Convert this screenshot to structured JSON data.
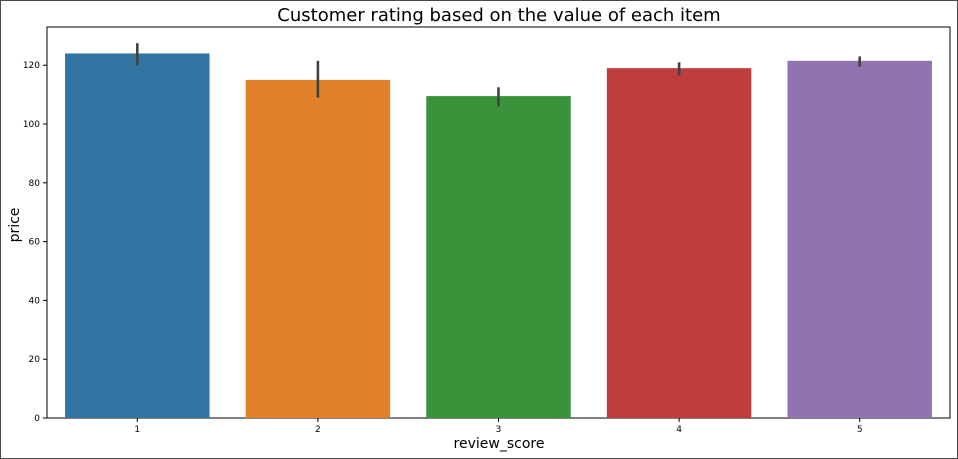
{
  "chart_data": {
    "type": "bar",
    "title": "Customer rating based on the value of each item",
    "xlabel": "review_score",
    "ylabel": "price",
    "categories": [
      "1",
      "2",
      "3",
      "4",
      "5"
    ],
    "values": [
      124,
      115,
      109.5,
      119,
      121.5
    ],
    "error_low": [
      120,
      109,
      106,
      116.5,
      119.5
    ],
    "error_high": [
      127.5,
      121.5,
      112.5,
      121,
      123
    ],
    "colors": [
      "#3274a1",
      "#e1812c",
      "#3a923a",
      "#c03d3e",
      "#9372b2"
    ],
    "ylim": [
      0,
      133
    ],
    "yticks": [
      0,
      20,
      40,
      60,
      80,
      100,
      120
    ],
    "grid": false,
    "legend": "none"
  }
}
